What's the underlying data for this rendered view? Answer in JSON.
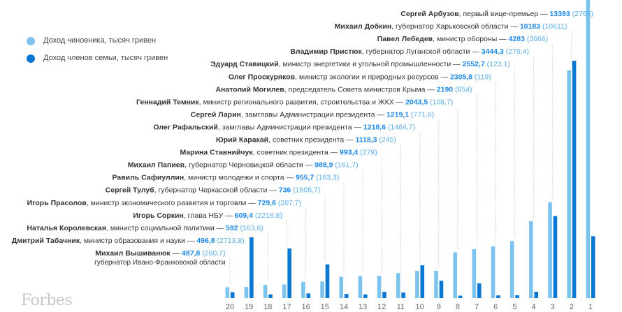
{
  "legend": {
    "official": {
      "label": "Доход чиновника, тысяч гривен",
      "color": "#7cc4ee"
    },
    "family": {
      "label": "Доход  членов семьи, тысяч гривен",
      "color": "#0a78d2"
    }
  },
  "logo": "Forbes",
  "colors": {
    "value": "#1e88e5",
    "bracket": "#5aaee8",
    "text": "#333333",
    "axis": "#666666"
  },
  "chart_data": {
    "type": "bar",
    "categories": [
      "20",
      "19",
      "18",
      "17",
      "16",
      "15",
      "14",
      "13",
      "12",
      "11",
      "10",
      "9",
      "8",
      "7",
      "6",
      "5",
      "4",
      "3",
      "2",
      "1"
    ],
    "series": [
      {
        "name": "Доход чиновника, тысяч гривен",
        "values": [
          487.8,
          496.8,
          592,
          609.4,
          729.6,
          736,
          955.7,
          988.9,
          993.4,
          1118.3,
          1218.6,
          1219.1,
          2043.5,
          2190,
          2305.8,
          2552.7,
          3444.3,
          4283,
          10183,
          13393
        ]
      },
      {
        "name": "Доход  членов семьи, тысяч гривен",
        "values": [
          260.7,
          2713.8,
          163.6,
          2218.8,
          207.7,
          1505.7,
          183.3,
          161.7,
          279,
          245,
          1464.7,
          771.6,
          108.7,
          654,
          119,
          123.1,
          279.4,
          3666,
          10611,
          2765
        ]
      }
    ],
    "entries": [
      {
        "rank": "1",
        "name": "Сергей Арбузов",
        "role": "первый вице-премьер",
        "official": "13393",
        "family": "2765"
      },
      {
        "rank": "2",
        "name": "Михаил Добкин",
        "role": "губернатор Харьковской области",
        "official": "10183",
        "family": "10611"
      },
      {
        "rank": "3",
        "name": "Павел Лебедев",
        "role": "министр обороны",
        "official": "4283",
        "family": "3666"
      },
      {
        "rank": "4",
        "name": "Владимир Пристюк",
        "role": "губернатор Луганской области",
        "official": "3444,3",
        "family": "279,4"
      },
      {
        "rank": "5",
        "name": "Эдуард Ставицкий",
        "role": "министр энергетики и угольной промышленности",
        "official": "2552,7",
        "family": "123,1"
      },
      {
        "rank": "6",
        "name": "Олег Проскуряков",
        "role": "министр экологии и природных ресурсов",
        "official": "2305,8",
        "family": "119"
      },
      {
        "rank": "7",
        "name": "Анатолий Могилев",
        "role": "председатель Совета министров Крыма",
        "official": "2190",
        "family": "654"
      },
      {
        "rank": "8",
        "name": "Геннадий Темник",
        "role": "министр регионального развития, строительства и ЖКХ",
        "official": "2043,5",
        "family": "108,7"
      },
      {
        "rank": "9",
        "name": "Сергей Ларин",
        "role": "замглавы Администрации президента",
        "official": "1219,1",
        "family": "771,6"
      },
      {
        "rank": "10",
        "name": "Олег Рафальский",
        "role": "замглавы Администрации президента",
        "official": "1218,6",
        "family": "1464,7"
      },
      {
        "rank": "11",
        "name": "Юрий Каракай",
        "role": "советник президента",
        "official": "1118,3",
        "family": "245"
      },
      {
        "rank": "12",
        "name": "Марина Ставнийчук",
        "role": "советник президента",
        "official": "993,4",
        "family": "279"
      },
      {
        "rank": "13",
        "name": "Михаил Папиев",
        "role": "губернатор Черновицкой области",
        "official": "988,9",
        "family": "161,7"
      },
      {
        "rank": "14",
        "name": "Равиль Сафиуллин",
        "role": "министр молодежи и спорта",
        "official": "955,7",
        "family": "183,3"
      },
      {
        "rank": "15",
        "name": "Сергей Тулуб",
        "role": "губернатор Черкасской области",
        "official": "736",
        "family": "1505,7"
      },
      {
        "rank": "16",
        "name": "Игорь Прасолов",
        "role": "министр экономического развития и торговли",
        "official": "729,6",
        "family": "207,7"
      },
      {
        "rank": "17",
        "name": "Игорь Соркин",
        "role": "глава НБУ",
        "official": "609,4",
        "family": "2218,8"
      },
      {
        "rank": "18",
        "name": "Наталья Королевская",
        "role": "министр социальной политики",
        "official": "592",
        "family": "163,6"
      },
      {
        "rank": "19",
        "name": "Дмитрий Табачник",
        "role": "министр образования и науки",
        "official": "496,8",
        "family": "2713,8"
      },
      {
        "rank": "20",
        "name": "Михаил Вышиванюк",
        "role": "губернатор Ивано-Франковской области",
        "official": "487,8",
        "family": "260,7"
      }
    ]
  }
}
